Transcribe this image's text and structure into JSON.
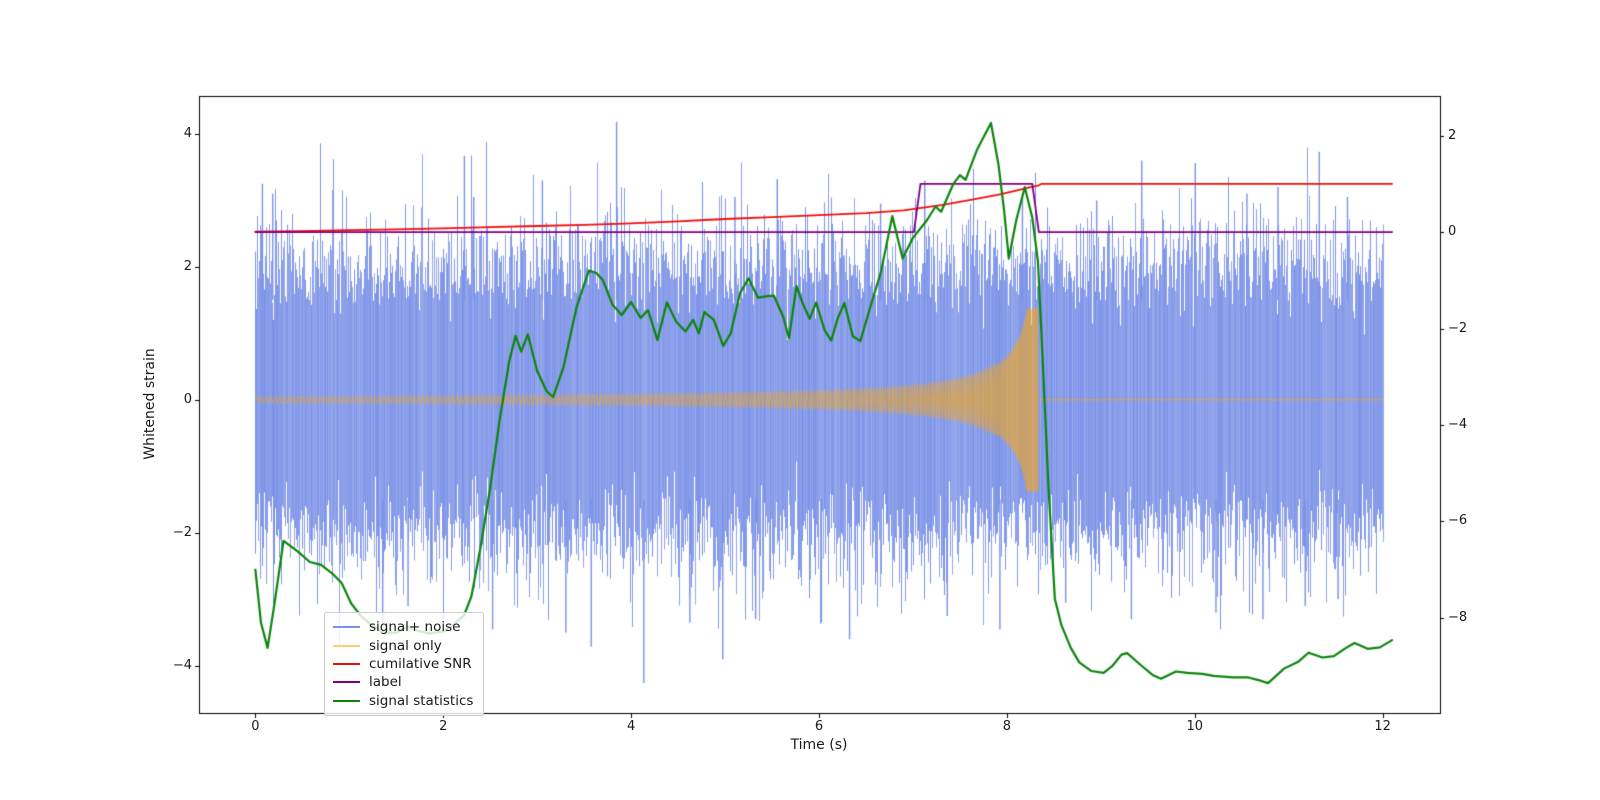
{
  "figure": {
    "background": "#ffffff"
  },
  "chart_data": {
    "type": "line",
    "title": "",
    "xlabel": "Time (s)",
    "ylabel_left": "Whitened strain",
    "xlim": [
      -0.6,
      12.61
    ],
    "ylim_left": [
      -4.71,
      4.57
    ],
    "ylim_right": [
      -9.97,
      2.82
    ],
    "grid": false,
    "x_ticks": [
      {
        "v": 0,
        "label": "0"
      },
      {
        "v": 2,
        "label": "2"
      },
      {
        "v": 4,
        "label": "4"
      },
      {
        "v": 6,
        "label": "6"
      },
      {
        "v": 8,
        "label": "8"
      },
      {
        "v": 10,
        "label": "10"
      },
      {
        "v": 12,
        "label": "12"
      }
    ],
    "y_ticks_left": [
      {
        "v": 4,
        "label": "4"
      },
      {
        "v": 2,
        "label": "2"
      },
      {
        "v": 0,
        "label": "0"
      },
      {
        "v": -2,
        "label": "−2"
      },
      {
        "v": -4,
        "label": "−4"
      }
    ],
    "y_ticks_right": [
      {
        "v": 2,
        "label": "2"
      },
      {
        "v": 0,
        "label": "0"
      },
      {
        "v": -2,
        "label": "−2"
      },
      {
        "v": -4,
        "label": "−4"
      },
      {
        "v": -6,
        "label": "−6"
      },
      {
        "v": -8,
        "label": "−8"
      }
    ],
    "legend": {
      "position": "lower left",
      "entries": [
        {
          "label": "signal+ noise",
          "color": "#7b92e8"
        },
        {
          "label": "signal only",
          "color": "rgba(255,165,0,0.55)"
        },
        {
          "label": "cumilative SNR",
          "color": "#f20d0d"
        },
        {
          "label": "label",
          "color": "#800080"
        },
        {
          "label": "signal statistics",
          "color": "#0c850c"
        }
      ]
    },
    "series": [
      {
        "name": "signal+ noise",
        "axis": "left",
        "style": "noise_band",
        "color": "#7b92e8",
        "sigma": 0.95,
        "samples_per_column": 44,
        "seed": 20157,
        "t_range": [
          0,
          12
        ],
        "spikes": [
          [
            0.07,
            3.25
          ],
          [
            0.18,
            3.1
          ],
          [
            1.35,
            -3.35
          ],
          [
            1.62,
            -3.1
          ],
          [
            2.22,
            3.67
          ],
          [
            2.32,
            3.05
          ],
          [
            2.52,
            -3.45
          ],
          [
            3.05,
            3.3
          ],
          [
            3.3,
            -3.5
          ],
          [
            3.57,
            -3.71
          ],
          [
            3.84,
            4.18
          ],
          [
            4.13,
            -4.26
          ],
          [
            4.62,
            -3.35
          ],
          [
            4.97,
            -3.9
          ],
          [
            5.1,
            3.05
          ],
          [
            5.32,
            -3.3
          ],
          [
            5.55,
            3.32
          ],
          [
            6.02,
            -3.35
          ],
          [
            6.32,
            -3.6
          ],
          [
            6.65,
            2.95
          ],
          [
            7.12,
            3.3
          ],
          [
            7.36,
            -3.25
          ],
          [
            7.92,
            -3.45
          ],
          [
            8.16,
            3.05
          ],
          [
            8.62,
            -3.05
          ],
          [
            8.95,
            3.0
          ],
          [
            9.32,
            -3.3
          ],
          [
            9.43,
            3.6
          ],
          [
            10.0,
            3.56
          ],
          [
            10.22,
            -3.2
          ],
          [
            10.55,
            3.1
          ],
          [
            10.72,
            -3.3
          ],
          [
            10.88,
            3.2
          ],
          [
            11.17,
            -3.1
          ],
          [
            11.32,
            3.73
          ],
          [
            11.52,
            -3.0
          ],
          [
            11.62,
            3.05
          ]
        ]
      },
      {
        "name": "signal only",
        "axis": "left",
        "style": "chirp",
        "color": "#ffa500",
        "alpha": 0.55,
        "width": 1.1,
        "t_start": 0,
        "t_merger": 8.33,
        "t_end": 12,
        "amp_coef": 0.28,
        "amp_pow": -0.8,
        "amp_max": 1.38,
        "freq_coef": 44.3,
        "freq_pow": -0.375,
        "freq_max": 170,
        "post_amp": 0.02
      },
      {
        "name": "cumilative SNR",
        "axis": "right",
        "style": "line",
        "color": "#f20d0d",
        "width": 1.8,
        "points": [
          [
            0,
            0.01
          ],
          [
            0.5,
            0.02
          ],
          [
            1,
            0.04
          ],
          [
            1.5,
            0.055
          ],
          [
            2,
            0.075
          ],
          [
            2.5,
            0.1
          ],
          [
            3,
            0.125
          ],
          [
            3.5,
            0.15
          ],
          [
            4,
            0.18
          ],
          [
            4.5,
            0.22
          ],
          [
            5,
            0.27
          ],
          [
            5.5,
            0.31
          ],
          [
            6,
            0.35
          ],
          [
            6.5,
            0.39
          ],
          [
            6.9,
            0.45
          ],
          [
            7.3,
            0.56
          ],
          [
            7.6,
            0.66
          ],
          [
            7.9,
            0.77
          ],
          [
            8.1,
            0.86
          ],
          [
            8.25,
            0.93
          ],
          [
            8.33,
            0.96
          ],
          [
            8.37,
            1.0
          ],
          [
            12.1,
            1.0
          ]
        ]
      },
      {
        "name": "label",
        "axis": "right",
        "style": "line",
        "color": "#800080",
        "width": 1.8,
        "points": [
          [
            0,
            0.0
          ],
          [
            7.01,
            0.0
          ],
          [
            7.08,
            1.0
          ],
          [
            8.27,
            1.0
          ],
          [
            8.34,
            0.0
          ],
          [
            12.1,
            0.0
          ]
        ]
      },
      {
        "name": "signal statistics",
        "axis": "right",
        "style": "line",
        "color": "#0c850c",
        "width": 2.2,
        "points": [
          [
            0.0,
            -7.0
          ],
          [
            0.06,
            -8.1
          ],
          [
            0.13,
            -8.62
          ],
          [
            0.2,
            -7.75
          ],
          [
            0.3,
            -6.4
          ],
          [
            0.45,
            -6.62
          ],
          [
            0.58,
            -6.84
          ],
          [
            0.7,
            -6.9
          ],
          [
            0.82,
            -7.08
          ],
          [
            0.92,
            -7.28
          ],
          [
            1.02,
            -7.7
          ],
          [
            1.12,
            -7.95
          ],
          [
            1.24,
            -8.15
          ],
          [
            1.38,
            -8.32
          ],
          [
            1.5,
            -8.3
          ],
          [
            1.62,
            -8.18
          ],
          [
            1.72,
            -8.26
          ],
          [
            1.85,
            -8.32
          ],
          [
            2.0,
            -8.28
          ],
          [
            2.12,
            -8.12
          ],
          [
            2.22,
            -7.95
          ],
          [
            2.3,
            -7.55
          ],
          [
            2.4,
            -6.5
          ],
          [
            2.5,
            -5.3
          ],
          [
            2.6,
            -3.9
          ],
          [
            2.7,
            -2.7
          ],
          [
            2.77,
            -2.15
          ],
          [
            2.83,
            -2.48
          ],
          [
            2.9,
            -2.12
          ],
          [
            3.0,
            -2.88
          ],
          [
            3.1,
            -3.3
          ],
          [
            3.17,
            -3.42
          ],
          [
            3.28,
            -2.8
          ],
          [
            3.42,
            -1.55
          ],
          [
            3.55,
            -0.8
          ],
          [
            3.63,
            -0.85
          ],
          [
            3.7,
            -1.0
          ],
          [
            3.8,
            -1.5
          ],
          [
            3.9,
            -1.72
          ],
          [
            4.0,
            -1.45
          ],
          [
            4.1,
            -1.78
          ],
          [
            4.18,
            -1.62
          ],
          [
            4.28,
            -2.24
          ],
          [
            4.38,
            -1.46
          ],
          [
            4.48,
            -1.86
          ],
          [
            4.58,
            -2.06
          ],
          [
            4.66,
            -1.82
          ],
          [
            4.72,
            -2.1
          ],
          [
            4.78,
            -1.66
          ],
          [
            4.88,
            -1.82
          ],
          [
            4.98,
            -2.36
          ],
          [
            5.06,
            -2.1
          ],
          [
            5.16,
            -1.26
          ],
          [
            5.25,
            -0.96
          ],
          [
            5.35,
            -1.36
          ],
          [
            5.45,
            -1.33
          ],
          [
            5.52,
            -1.32
          ],
          [
            5.62,
            -1.76
          ],
          [
            5.68,
            -2.2
          ],
          [
            5.76,
            -1.12
          ],
          [
            5.82,
            -1.45
          ],
          [
            5.9,
            -1.8
          ],
          [
            5.97,
            -1.46
          ],
          [
            6.06,
            -2.04
          ],
          [
            6.13,
            -2.25
          ],
          [
            6.2,
            -1.78
          ],
          [
            6.27,
            -1.47
          ],
          [
            6.36,
            -2.16
          ],
          [
            6.44,
            -2.26
          ],
          [
            6.56,
            -1.46
          ],
          [
            6.66,
            -0.82
          ],
          [
            6.78,
            0.33
          ],
          [
            6.89,
            -0.55
          ],
          [
            7.0,
            -0.12
          ],
          [
            7.15,
            0.25
          ],
          [
            7.24,
            0.53
          ],
          [
            7.3,
            0.42
          ],
          [
            7.43,
            1.0
          ],
          [
            7.5,
            1.18
          ],
          [
            7.56,
            1.08
          ],
          [
            7.68,
            1.7
          ],
          [
            7.83,
            2.26
          ],
          [
            7.91,
            1.4
          ],
          [
            7.97,
            0.45
          ],
          [
            8.02,
            -0.55
          ],
          [
            8.1,
            0.25
          ],
          [
            8.19,
            0.93
          ],
          [
            8.27,
            0.3
          ],
          [
            8.33,
            -0.6
          ],
          [
            8.38,
            -2.6
          ],
          [
            8.44,
            -5.2
          ],
          [
            8.51,
            -7.6
          ],
          [
            8.58,
            -8.15
          ],
          [
            8.68,
            -8.62
          ],
          [
            8.77,
            -8.92
          ],
          [
            8.9,
            -9.1
          ],
          [
            9.03,
            -9.14
          ],
          [
            9.12,
            -9.0
          ],
          [
            9.22,
            -8.76
          ],
          [
            9.28,
            -8.73
          ],
          [
            9.42,
            -8.97
          ],
          [
            9.55,
            -9.18
          ],
          [
            9.64,
            -9.26
          ],
          [
            9.8,
            -9.11
          ],
          [
            9.92,
            -9.14
          ],
          [
            10.08,
            -9.16
          ],
          [
            10.2,
            -9.2
          ],
          [
            10.4,
            -9.23
          ],
          [
            10.56,
            -9.23
          ],
          [
            10.7,
            -9.3
          ],
          [
            10.78,
            -9.35
          ],
          [
            10.95,
            -9.05
          ],
          [
            11.1,
            -8.91
          ],
          [
            11.21,
            -8.72
          ],
          [
            11.36,
            -8.82
          ],
          [
            11.48,
            -8.79
          ],
          [
            11.61,
            -8.62
          ],
          [
            11.7,
            -8.52
          ],
          [
            11.84,
            -8.64
          ],
          [
            11.97,
            -8.61
          ],
          [
            12.1,
            -8.46
          ]
        ]
      }
    ]
  }
}
